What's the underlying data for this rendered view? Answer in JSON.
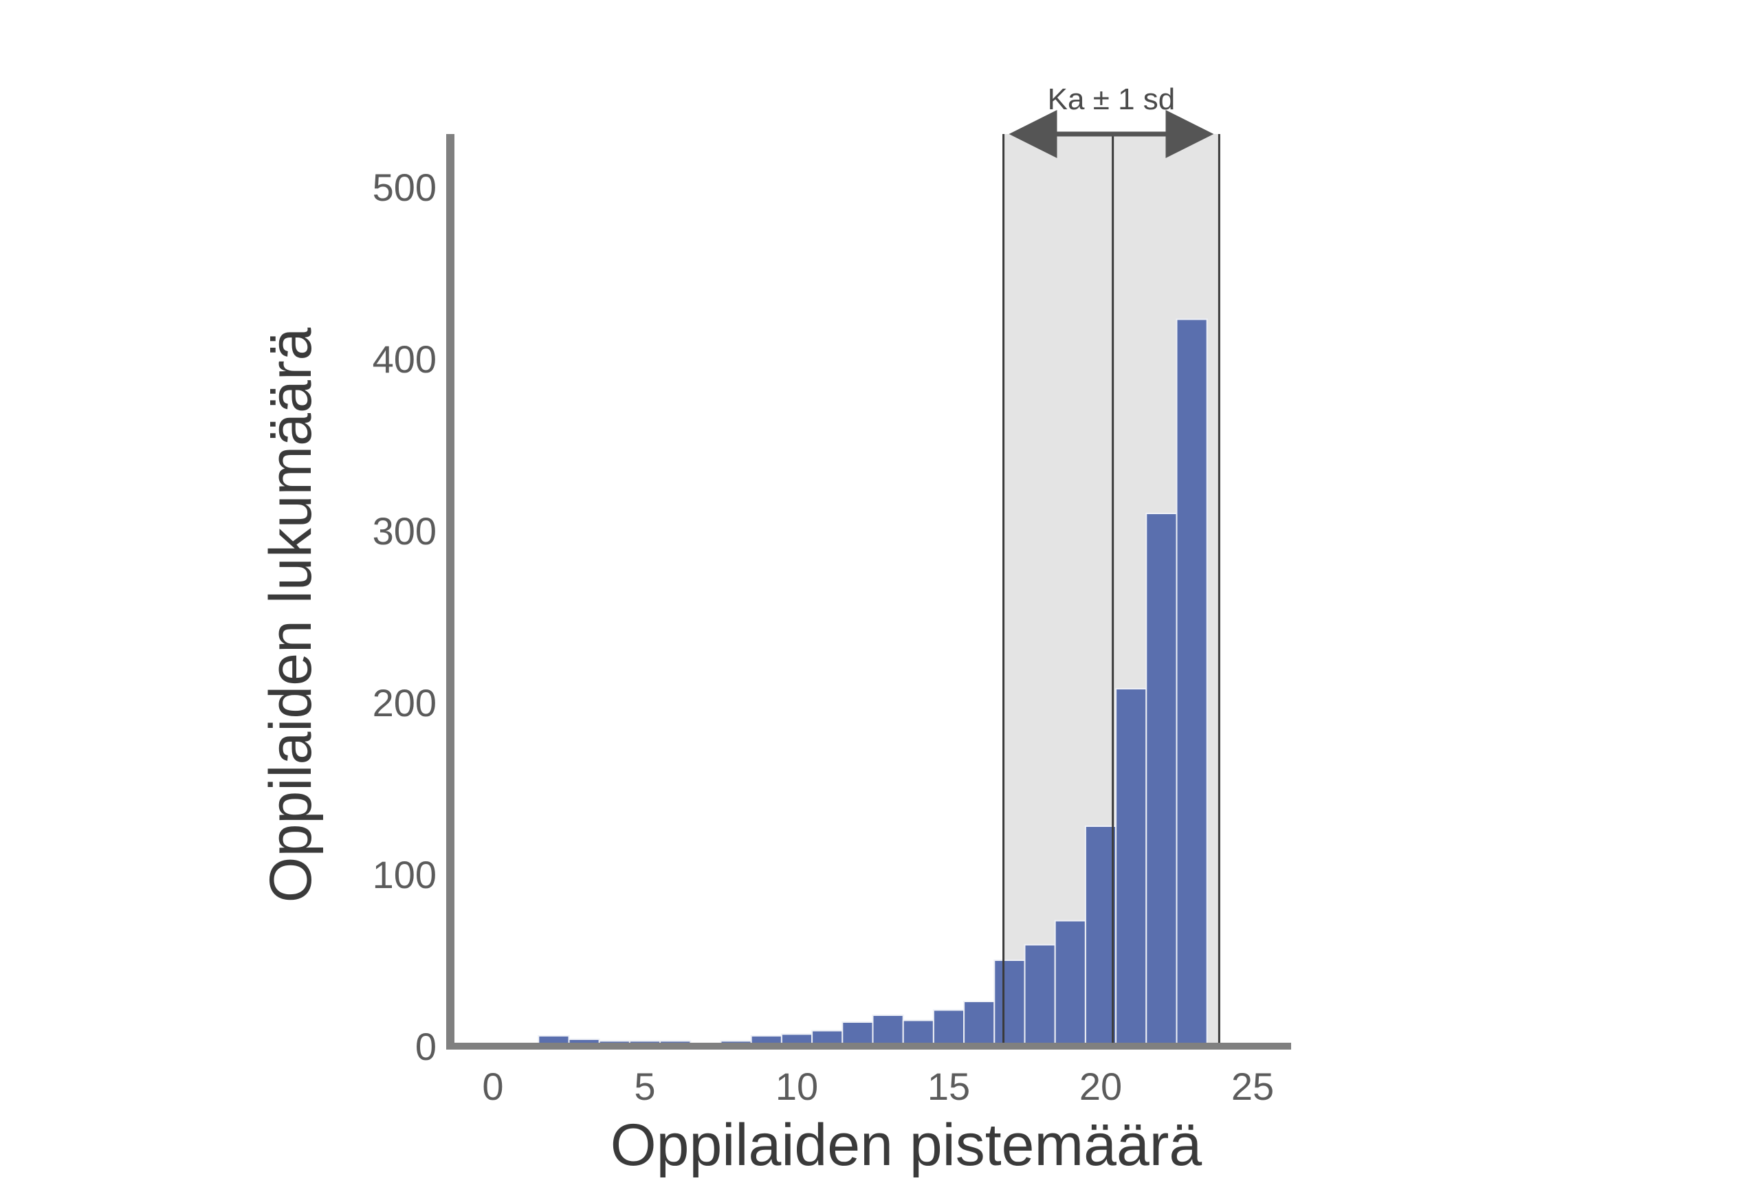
{
  "chart_data": {
    "type": "bar",
    "xlabel": "Oppilaiden pistemäärä",
    "ylabel": "Oppilaiden lukumäärä",
    "xlim": [
      -1.5,
      26.5
    ],
    "ylim": [
      0,
      530
    ],
    "x_ticks": [
      "0",
      "5",
      "10",
      "15",
      "20",
      "25"
    ],
    "y_ticks": [
      "0",
      "100",
      "200",
      "300",
      "400",
      "500"
    ],
    "grid": false,
    "legend": "none",
    "bar_color": "#5a6fae",
    "bin_width": 1,
    "bins": [
      2,
      3,
      4,
      5,
      6,
      7,
      8,
      9,
      10,
      11,
      12,
      13,
      14,
      15,
      16,
      17,
      18,
      19,
      20,
      21,
      22,
      23
    ],
    "values": [
      6,
      4,
      3,
      3,
      3,
      1,
      3,
      6,
      7,
      9,
      14,
      18,
      15,
      21,
      26,
      50,
      59,
      73,
      128,
      208,
      310,
      423
    ],
    "band": {
      "label": "Ka ± 1 sd",
      "from": 16.8,
      "to": 23.9,
      "mean": 20.4,
      "fill_color": "#e4e4e4"
    }
  }
}
